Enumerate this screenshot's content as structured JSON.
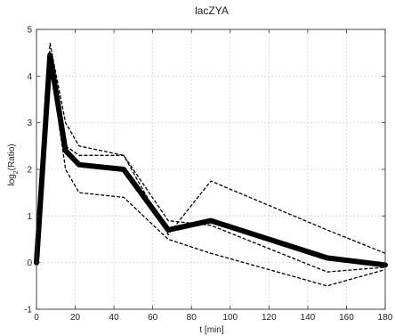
{
  "chart_data": {
    "type": "line",
    "title": "lacZYA",
    "xlabel": "t [min]",
    "ylabel": "log2(Ratio)",
    "ylabel_parts": {
      "base": "log",
      "sub": "2",
      "rest": "(Ratio)"
    },
    "xlim": [
      0,
      180
    ],
    "ylim": [
      -1,
      5
    ],
    "xticks": [
      0,
      20,
      40,
      60,
      80,
      100,
      120,
      140,
      160,
      180
    ],
    "yticks": [
      -1,
      0,
      1,
      2,
      3,
      4,
      5
    ],
    "grid": true,
    "series": [
      {
        "style": "solid-thick",
        "x": [
          0,
          7,
          15,
          22,
          45,
          68,
          90,
          150,
          180
        ],
        "y": [
          0.0,
          4.45,
          2.4,
          2.1,
          2.0,
          0.7,
          0.9,
          0.1,
          -0.05
        ]
      },
      {
        "style": "dashed",
        "x": [
          0,
          7,
          15,
          22,
          45,
          68,
          90,
          150,
          180
        ],
        "y": [
          0.0,
          4.7,
          3.0,
          2.5,
          2.3,
          0.9,
          0.8,
          -0.2,
          -0.1
        ]
      },
      {
        "style": "dashed",
        "x": [
          0,
          7,
          15,
          22,
          45,
          68,
          90,
          150,
          180
        ],
        "y": [
          0.0,
          4.3,
          2.0,
          1.5,
          1.4,
          0.5,
          0.2,
          -0.5,
          -0.15
        ]
      },
      {
        "style": "dashed",
        "x": [
          0,
          7,
          15,
          22,
          45,
          68,
          90,
          150,
          180
        ],
        "y": [
          0.0,
          4.5,
          2.5,
          2.3,
          2.3,
          0.6,
          1.75,
          0.7,
          0.2
        ]
      }
    ]
  }
}
